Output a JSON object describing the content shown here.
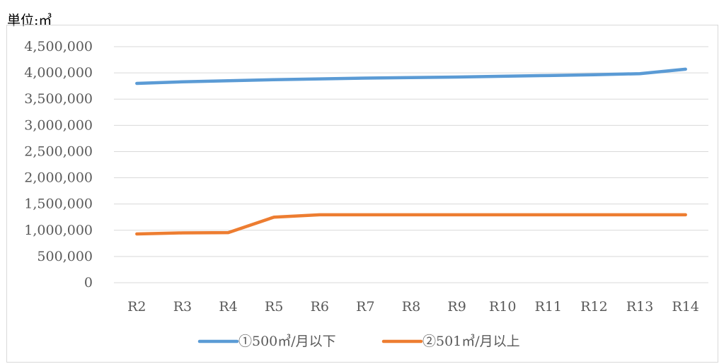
{
  "unit_label": "単位:㎥",
  "chart_data": {
    "type": "line",
    "categories": [
      "R2",
      "R3",
      "R4",
      "R5",
      "R6",
      "R7",
      "R8",
      "R9",
      "R10",
      "R11",
      "R12",
      "R13",
      "R14"
    ],
    "ylim": [
      0,
      4500000
    ],
    "y_ticks": [
      {
        "value": 0,
        "label": "0"
      },
      {
        "value": 500000,
        "label": "500,000"
      },
      {
        "value": 1000000,
        "label": "1,000,000"
      },
      {
        "value": 1500000,
        "label": "1,500,000"
      },
      {
        "value": 2000000,
        "label": "2,000,000"
      },
      {
        "value": 2500000,
        "label": "2,500,000"
      },
      {
        "value": 3000000,
        "label": "3,000,000"
      },
      {
        "value": 3500000,
        "label": "3,500,000"
      },
      {
        "value": 4000000,
        "label": "4,000,000"
      },
      {
        "value": 4500000,
        "label": "4,500,000"
      }
    ],
    "series": [
      {
        "name": "①500㎥/月以下",
        "color": "#5b9bd5",
        "values": [
          3800000,
          3830000,
          3850000,
          3870000,
          3885000,
          3900000,
          3910000,
          3920000,
          3935000,
          3950000,
          3965000,
          3985000,
          4070000
        ]
      },
      {
        "name": "②501㎥/月以上",
        "color": "#ed7d31",
        "values": [
          930000,
          950000,
          955000,
          1250000,
          1295000,
          1295000,
          1295000,
          1295000,
          1295000,
          1295000,
          1295000,
          1295000,
          1295000
        ]
      }
    ]
  }
}
